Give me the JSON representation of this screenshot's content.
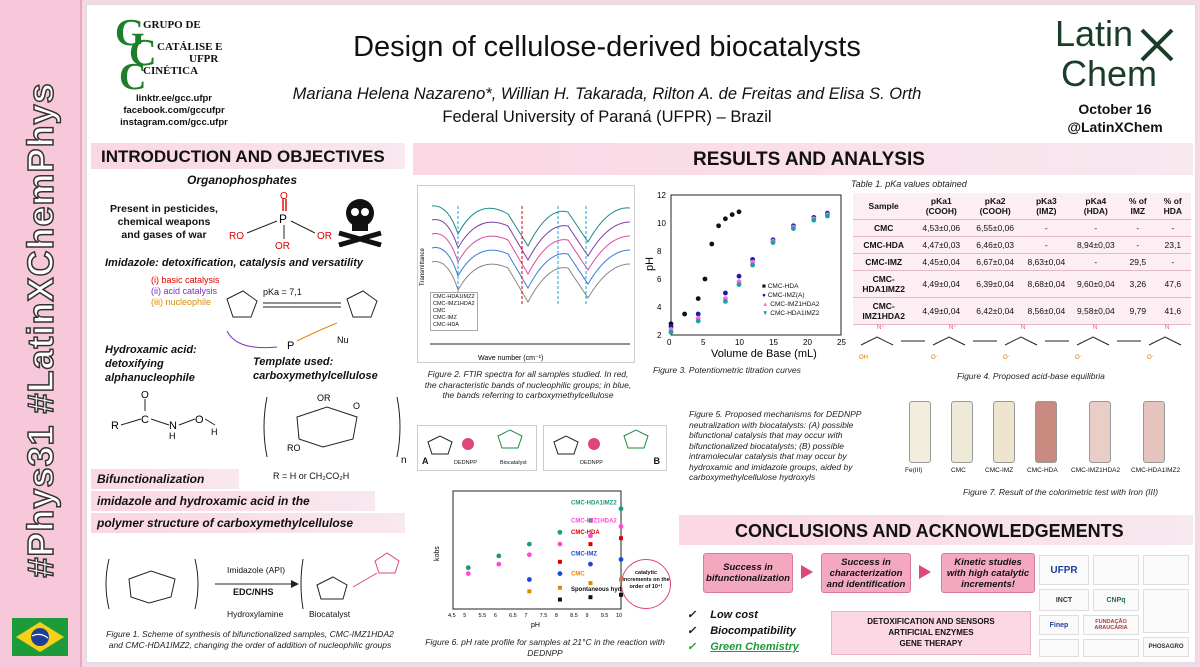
{
  "sidebar": {
    "hashtag": "#Phys31 #LatinXChemPhys"
  },
  "header": {
    "group_lines": [
      "GRUPO DE",
      "CATÁLISE E",
      "CINÉTICA",
      "UFPR"
    ],
    "links": [
      "linktr.ee/gcc.ufpr",
      "facebook.com/gccufpr",
      "instagram.com/gcc.ufpr"
    ],
    "title": "Design of cellulose-derived biocatalysts",
    "authors": "Mariana Helena Nazareno*, Willian H. Takarada, Rilton A. de Freitas and Elisa S. Orth",
    "affiliation": "Federal University of Paraná (UFPR) – Brazil",
    "logo_top": "Latin",
    "logo_bottom": "Chem",
    "date": "October 16",
    "handle": "@LatinXChem"
  },
  "intro": {
    "heading": "INTRODUCTION AND OBJECTIVES",
    "organophosphates": "Organophosphates",
    "present_in": "Present in pesticides, chemical weapons and gases of war",
    "imidazole": "Imidazole: detoxification, catalysis and versatility",
    "basic": "(i) basic catalysis",
    "acid": "(ii) acid catalysis",
    "nucleophile": "(iii) nucleophile",
    "pka": "pKa = 7,1",
    "hydroxamic": "Hydroxamic acid: detoxifying alphanucleophile",
    "template": "Template used: carboxymethylcellulose",
    "r_def": "R = H or CH₂CO₂H"
  },
  "bifunc": {
    "line1": "Bifunctionalization",
    "line2": "imidazole and hydroxamic acid in the",
    "line3": "polymer structure of carboxymethylcellulose",
    "reagent1": "Imidazole (API)",
    "reagent2": "EDC/NHS",
    "reagent3": "Hydroxylamine",
    "product": "Biocatalyst",
    "fig1": "Figure 1. Scheme of synthesis of bifunctionalized samples, CMC-IMZ1HDA2 and CMC-HDA1IMZ2, changing the order of addition of nucleophilic groups"
  },
  "results": {
    "heading": "RESULTS AND ANALYSIS",
    "fig2": "Figure 2. FTIR spectra for all samples studied. In red, the characteristic bands of nucleophilic groups; in blue, the bands referring to carboxymethylcellulose",
    "fig3": "Figure 3. Potentiometric titration curves",
    "fig4": "Figure 4. Proposed acid-base equilibria",
    "fig5": "Figure 5. Proposed mechanisms for DEDNPP neutralization with biocatalysts: (A) possible bifunctional catalysis that may occur with bifunctionalized biocatalysts; (B) possible intramolecular catalysis that may occur by hydroxamic and imidazole groups, aided by carboxymethylcellulose hydroxyls",
    "fig6": "Figure 6. pH rate profile for samples at 21°C in the reaction with DEDNPP",
    "fig7": "Figure 7. Result of the colorimetric test with Iron (III)",
    "ftir_xlabel": "Wave number (cm⁻¹)",
    "ftir_ylabel": "Transmittance",
    "ftir_legend": [
      "CMC-HDA1IMZ2",
      "CMC-IMZ1HDA2",
      "CMC",
      "CMC-IMZ",
      "CMC-HDA"
    ],
    "ftir_ticks": [
      "4000",
      "3500",
      "3000",
      "2500",
      "2000",
      "1500",
      "1000",
      "500"
    ],
    "ftir_annot": [
      "3700 a 3000 cm⁻¹",
      "3290cm⁻¹",
      "1560cm⁻¹",
      "1640cm⁻¹",
      "1100cm⁻¹",
      "1030cm⁻¹",
      "900cm⁻¹"
    ],
    "titr_xlabel": "Volume de Base (mL)",
    "titr_ylabel": "pH",
    "titr_legend": [
      "CMC-HDA",
      "CMC-IMZ(A)",
      "CMC-IMZ1HDA2",
      "CMC-HDA1IMZ2"
    ],
    "labels_AB": [
      "A",
      "B"
    ],
    "dednpp": "DEDNPP",
    "biocat": "Biocatalyst",
    "fig6_series": [
      "CMC-HDA1IMZ2",
      "CMC-IMZ1HDA2",
      "CMC-HDA",
      "CMC-IMZ",
      "CMC",
      "Spontaneous hydrolysis"
    ],
    "fig6_xlabel": "pH",
    "fig6_badge": "catalytic increments on the order of 10⁴!",
    "vials": [
      "Fe(III)",
      "CMC",
      "CMC-IMZ",
      "CMC-HDA",
      "CMC-IMZ1HDA2",
      "CMC-HDA1IMZ2"
    ]
  },
  "table": {
    "title": "Table 1. pKa values obtained",
    "headers": [
      "Sample",
      "pKa1 (COOH)",
      "pKa2 (COOH)",
      "pKa3 (IMZ)",
      "pKa4 (HDA)",
      "% of IMZ",
      "% of HDA"
    ],
    "rows": [
      [
        "CMC",
        "4,53±0,06",
        "6,55±0,06",
        "-",
        "-",
        "-",
        "-"
      ],
      [
        "CMC-HDA",
        "4,47±0,03",
        "6,46±0,03",
        "-",
        "8,94±0,03",
        "-",
        "23,1"
      ],
      [
        "CMC-IMZ",
        "4,45±0,04",
        "6,67±0,04",
        "8,63±0,04",
        "-",
        "29,5",
        "-"
      ],
      [
        "CMC-HDA1IMZ2",
        "4,49±0,04",
        "6,39±0,04",
        "8,68±0,04",
        "9,60±0,04",
        "3,26",
        "47,6"
      ],
      [
        "CMC-IMZ1HDA2",
        "4,49±0,04",
        "6,42±0,04",
        "8,56±0,04",
        "9,58±0,04",
        "9,79",
        "41,6"
      ]
    ]
  },
  "conclusions": {
    "heading": "CONCLUSIONS AND ACKNOWLEDGEMENTS",
    "box1": "Success in bifunctionalization",
    "box2": "Success in characterization and identification",
    "box3": "Kinetic studies with high catalytic increments!",
    "checks": [
      "Low cost",
      "Biocompatibility",
      "Green Chemistry"
    ],
    "applications": [
      "DETOXIFICATION AND SENSORS",
      "ARTIFICIAL ENZYMES",
      "GENE THERAPY"
    ],
    "logos": [
      "UFPR",
      "INCT",
      "CNPq",
      "Finep",
      "FUNDAÇÃO ARAUCÁRIA",
      "PHOSAGRO"
    ]
  },
  "chart_data": [
    {
      "type": "line",
      "title": "",
      "xlabel": "Volume de Base (mL)",
      "ylabel": "pH",
      "xlim": [
        0,
        25
      ],
      "ylim": [
        2,
        12
      ],
      "series": [
        {
          "name": "CMC-HDA",
          "x": [
            0,
            2,
            4,
            5,
            6,
            7,
            8,
            9,
            10
          ],
          "values": [
            2.8,
            3.5,
            4.6,
            6,
            8.5,
            9.8,
            10.3,
            10.6,
            10.8
          ]
        },
        {
          "name": "CMC-IMZ(A)",
          "x": [
            0,
            4,
            8,
            10,
            12,
            15,
            18,
            21,
            23
          ],
          "values": [
            2.6,
            3.5,
            5,
            6.2,
            7.4,
            8.8,
            9.8,
            10.4,
            10.7
          ]
        },
        {
          "name": "CMC-IMZ1HDA2",
          "x": [
            0,
            4,
            8,
            10,
            12,
            15,
            18,
            21,
            23
          ],
          "values": [
            2.4,
            3.2,
            4.6,
            5.8,
            7.2,
            8.7,
            9.7,
            10.3,
            10.6
          ]
        },
        {
          "name": "CMC-HDA1IMZ2",
          "x": [
            0,
            4,
            8,
            10,
            12,
            15,
            18,
            21,
            23
          ],
          "values": [
            2.2,
            3,
            4.4,
            5.6,
            7,
            8.6,
            9.6,
            10.2,
            10.5
          ]
        }
      ]
    },
    {
      "type": "scatter",
      "title": "",
      "xlabel": "pH",
      "ylabel": "kobs",
      "xlim": [
        4.5,
        10
      ],
      "series": [
        {
          "name": "CMC-HDA1IMZ2",
          "x": [
            5,
            6,
            7,
            8,
            9,
            10
          ],
          "values": [
            0.35,
            0.45,
            0.55,
            0.65,
            0.75,
            0.85
          ]
        },
        {
          "name": "CMC-IMZ1HDA2",
          "x": [
            5,
            6,
            7,
            8,
            9,
            10
          ],
          "values": [
            0.3,
            0.38,
            0.46,
            0.55,
            0.62,
            0.7
          ]
        },
        {
          "name": "CMC-HDA",
          "x": [
            8,
            9,
            10
          ],
          "values": [
            0.4,
            0.55,
            0.6
          ]
        },
        {
          "name": "CMC-IMZ",
          "x": [
            7,
            8,
            9,
            10
          ],
          "values": [
            0.25,
            0.3,
            0.38,
            0.42
          ]
        },
        {
          "name": "CMC",
          "x": [
            7,
            8,
            9,
            10
          ],
          "values": [
            0.15,
            0.18,
            0.22,
            0.25
          ]
        },
        {
          "name": "Spontaneous hydrolysis",
          "x": [
            8,
            9,
            10
          ],
          "values": [
            0.08,
            0.1,
            0.12
          ]
        }
      ]
    }
  ],
  "colors": {
    "accent": "#e0457b",
    "band": "#fbd6e3",
    "flag": "#1d9a3a"
  }
}
